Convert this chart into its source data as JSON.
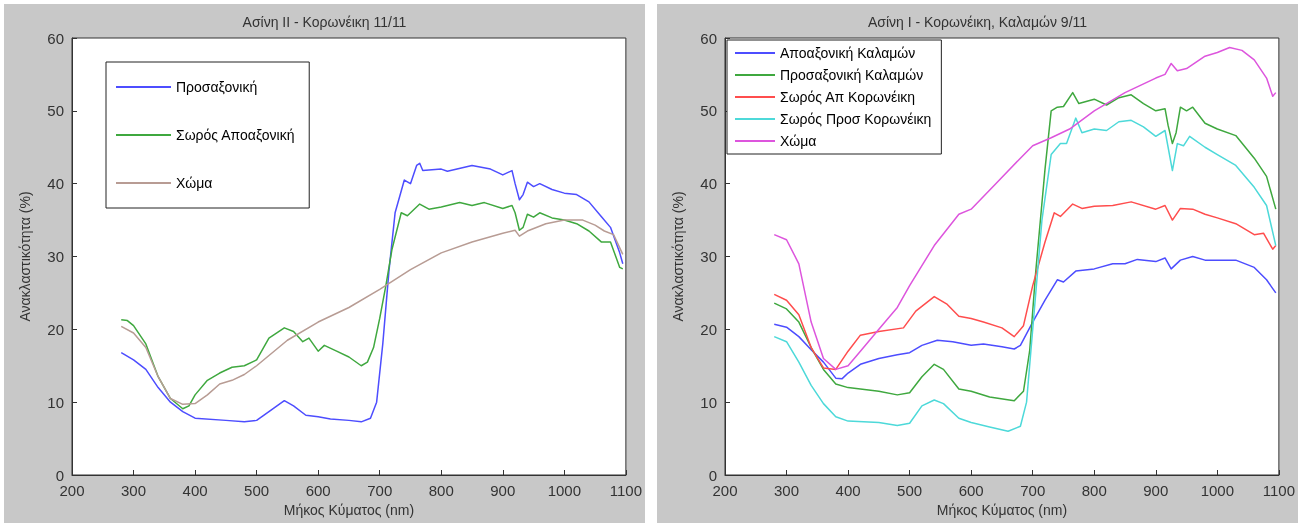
{
  "chart_data": [
    {
      "type": "line",
      "title": "Ασίνη ΙΙ - Κορωνέικη 11/11",
      "xlabel": "Μήκος Κύματος (nm)",
      "ylabel": "Ανακλαστικότητα (%)",
      "xlim": [
        200,
        1100
      ],
      "ylim": [
        0,
        60
      ],
      "xticks": [
        200,
        300,
        400,
        500,
        600,
        700,
        800,
        900,
        1000,
        1100
      ],
      "yticks": [
        0,
        10,
        20,
        30,
        40,
        50,
        60
      ],
      "grid": false,
      "legend": "top left",
      "marker": "none",
      "line_style": "solid",
      "series": [
        {
          "name": "Προσαξονική",
          "color": "#4d4dff",
          "x": [
            280,
            300,
            320,
            340,
            360,
            380,
            400,
            450,
            480,
            500,
            520,
            545,
            560,
            580,
            600,
            620,
            650,
            670,
            685,
            695,
            705,
            715,
            725,
            740,
            750,
            760,
            765,
            770,
            800,
            810,
            850,
            880,
            900,
            915,
            920,
            927,
            933,
            940,
            950,
            960,
            980,
            1000,
            1020,
            1040,
            1060,
            1075,
            1090,
            1095
          ],
          "values": [
            16.8,
            15.8,
            14.5,
            12,
            10,
            8.7,
            7.8,
            7.5,
            7.3,
            7.5,
            8.7,
            10.2,
            9.5,
            8.2,
            8,
            7.7,
            7.5,
            7.3,
            7.8,
            10,
            18,
            28,
            36,
            40.5,
            40,
            42.5,
            42.8,
            41.8,
            42,
            41.7,
            42.5,
            42,
            41.2,
            41.8,
            40,
            37.8,
            38.5,
            40.2,
            39.6,
            40,
            39.2,
            38.7,
            38.5,
            37.5,
            35.5,
            34,
            30.5,
            29
          ]
        },
        {
          "name": "Σωρός Αποαξονική",
          "color": "#3fa83f",
          "x": [
            280,
            290,
            300,
            320,
            340,
            360,
            380,
            390,
            400,
            420,
            440,
            460,
            480,
            500,
            520,
            545,
            560,
            575,
            585,
            600,
            610,
            630,
            650,
            670,
            680,
            690,
            700,
            710,
            720,
            735,
            745,
            765,
            780,
            800,
            830,
            850,
            870,
            900,
            915,
            920,
            927,
            933,
            940,
            950,
            960,
            980,
            1000,
            1020,
            1040,
            1060,
            1075,
            1090,
            1095
          ],
          "values": [
            21.3,
            21.2,
            20.5,
            18,
            13.5,
            10.5,
            9.1,
            9.5,
            11,
            13,
            14,
            14.8,
            15,
            15.8,
            18.8,
            20.2,
            19.7,
            18.3,
            18.8,
            17,
            17.8,
            17,
            16.2,
            15,
            15.5,
            17.5,
            21.5,
            26,
            31,
            36,
            35.6,
            37.2,
            36.5,
            36.8,
            37.4,
            37,
            37.4,
            36.6,
            37,
            36,
            33.6,
            34,
            35.8,
            35.4,
            36,
            35.3,
            35,
            34.5,
            33.5,
            32,
            32,
            28.5,
            28.3
          ]
        },
        {
          "name": "Χώμα",
          "color": "#b89c94",
          "x": [
            280,
            300,
            320,
            340,
            360,
            380,
            400,
            420,
            440,
            460,
            480,
            500,
            550,
            600,
            650,
            700,
            750,
            800,
            850,
            900,
            920,
            927,
            940,
            970,
            1000,
            1030,
            1050,
            1065,
            1080,
            1095
          ],
          "values": [
            20.4,
            19.5,
            17.5,
            13.5,
            10.5,
            9.7,
            9.8,
            11,
            12.5,
            13,
            13.8,
            15,
            18.5,
            21,
            23,
            25.5,
            28.2,
            30.5,
            32,
            33.2,
            33.6,
            32.8,
            33.5,
            34.5,
            35,
            35,
            34.3,
            33.5,
            33,
            30.3
          ]
        }
      ]
    },
    {
      "type": "line",
      "title": "Ασίνη Ι - Κορωνέικη, Καλαμών 9/11",
      "xlabel": "Μήκος Κύματος (nm)",
      "ylabel": "Ανακλαστικότητα (%)",
      "xlim": [
        200,
        1100
      ],
      "ylim": [
        0,
        60
      ],
      "xticks": [
        200,
        300,
        400,
        500,
        600,
        700,
        800,
        900,
        1000,
        1100
      ],
      "yticks": [
        0,
        10,
        20,
        30,
        40,
        50,
        60
      ],
      "grid": false,
      "legend": "top left",
      "marker": "none",
      "line_style": "solid",
      "series": [
        {
          "name": "Αποαξονική Καλαμών",
          "color": "#4d4dff",
          "x": [
            280,
            300,
            320,
            340,
            360,
            380,
            390,
            400,
            420,
            450,
            480,
            500,
            520,
            545,
            570,
            600,
            620,
            650,
            670,
            680,
            700,
            720,
            740,
            750,
            770,
            800,
            830,
            850,
            870,
            900,
            915,
            925,
            940,
            960,
            980,
            1000,
            1030,
            1060,
            1080,
            1095
          ],
          "values": [
            20.7,
            20.3,
            19,
            17.2,
            15.5,
            13.3,
            13.2,
            14,
            15.2,
            16,
            16.5,
            16.8,
            17.8,
            18.5,
            18.3,
            17.8,
            18,
            17.6,
            17.3,
            17.8,
            21,
            24,
            26.8,
            26.5,
            28,
            28.3,
            29,
            29,
            29.6,
            29.3,
            29.8,
            28.3,
            29.5,
            30,
            29.5,
            29.5,
            29.5,
            28.5,
            26.8,
            25
          ]
        },
        {
          "name": "Προσαξονική Καλαμών",
          "color": "#3fa83f",
          "x": [
            280,
            300,
            320,
            340,
            360,
            380,
            400,
            450,
            480,
            500,
            520,
            540,
            555,
            580,
            600,
            630,
            670,
            685,
            695,
            705,
            720,
            730,
            740,
            750,
            765,
            775,
            800,
            820,
            840,
            860,
            880,
            900,
            915,
            920,
            927,
            933,
            940,
            950,
            960,
            980,
            1000,
            1030,
            1060,
            1080,
            1095
          ],
          "values": [
            23.6,
            22.8,
            21,
            17.5,
            14.5,
            12.5,
            12,
            11.5,
            11,
            11.3,
            13.5,
            15.2,
            14.5,
            11.8,
            11.5,
            10.7,
            10.2,
            11.5,
            17,
            28,
            42,
            50,
            50.5,
            50.6,
            52.5,
            51,
            51.6,
            50.8,
            51.8,
            52.2,
            51,
            50,
            50.3,
            48,
            45.5,
            47,
            50.5,
            50,
            50.5,
            48.3,
            47.5,
            46.6,
            43.5,
            41,
            36.5
          ]
        },
        {
          "name": "Σωρός Απ Κορωνέικη",
          "color": "#ff4d4d",
          "x": [
            280,
            300,
            320,
            340,
            360,
            380,
            400,
            420,
            450,
            490,
            510,
            540,
            560,
            580,
            600,
            620,
            650,
            670,
            685,
            700,
            720,
            735,
            745,
            765,
            780,
            800,
            830,
            860,
            900,
            915,
            927,
            940,
            960,
            980,
            1000,
            1030,
            1060,
            1075,
            1090,
            1095
          ],
          "values": [
            24.8,
            24,
            22,
            17.5,
            14.7,
            14.5,
            17,
            19.2,
            19.7,
            20.2,
            22.5,
            24.5,
            23.5,
            21.8,
            21.5,
            21,
            20.2,
            19,
            20.5,
            26,
            32,
            36,
            35.5,
            37.2,
            36.6,
            36.9,
            37,
            37.5,
            36.5,
            37,
            35,
            36.6,
            36.5,
            35.8,
            35.3,
            34.5,
            33,
            33.2,
            31,
            31.5
          ]
        },
        {
          "name": "Σωρός Προσ Κορωνέικη",
          "color": "#4dd9d9",
          "x": [
            280,
            300,
            320,
            340,
            360,
            380,
            400,
            450,
            480,
            500,
            520,
            540,
            555,
            580,
            600,
            630,
            660,
            680,
            690,
            700,
            715,
            730,
            745,
            755,
            770,
            780,
            800,
            820,
            840,
            860,
            880,
            900,
            915,
            920,
            927,
            935,
            945,
            955,
            980,
            1000,
            1030,
            1060,
            1080,
            1095
          ],
          "values": [
            19,
            18.3,
            15.5,
            12.3,
            9.8,
            8,
            7.4,
            7.2,
            6.8,
            7.1,
            9.5,
            10.3,
            9.8,
            7.8,
            7.2,
            6.6,
            6,
            6.7,
            10,
            20,
            35,
            44,
            45.5,
            45.5,
            49,
            47,
            47.5,
            47.3,
            48.5,
            48.7,
            47.8,
            46.5,
            47.3,
            45,
            41.8,
            45.5,
            45.2,
            46.5,
            45,
            44,
            42.5,
            39.5,
            37,
            31.5
          ]
        },
        {
          "name": "Χώμα",
          "color": "#dd55dd",
          "x": [
            280,
            300,
            320,
            340,
            360,
            380,
            400,
            420,
            450,
            480,
            500,
            540,
            580,
            600,
            640,
            680,
            700,
            730,
            760,
            800,
            850,
            900,
            915,
            925,
            935,
            950,
            980,
            1000,
            1020,
            1040,
            1060,
            1080,
            1090,
            1095
          ],
          "values": [
            33,
            32.3,
            29,
            21,
            16,
            14.5,
            15,
            17,
            20,
            23,
            26,
            31.5,
            35.8,
            36.5,
            40,
            43.5,
            45.2,
            46.3,
            47.5,
            50,
            52.5,
            54.5,
            55,
            56.5,
            55.5,
            55.8,
            57.5,
            58,
            58.7,
            58.3,
            57,
            54.5,
            52,
            52.5
          ]
        }
      ]
    }
  ]
}
